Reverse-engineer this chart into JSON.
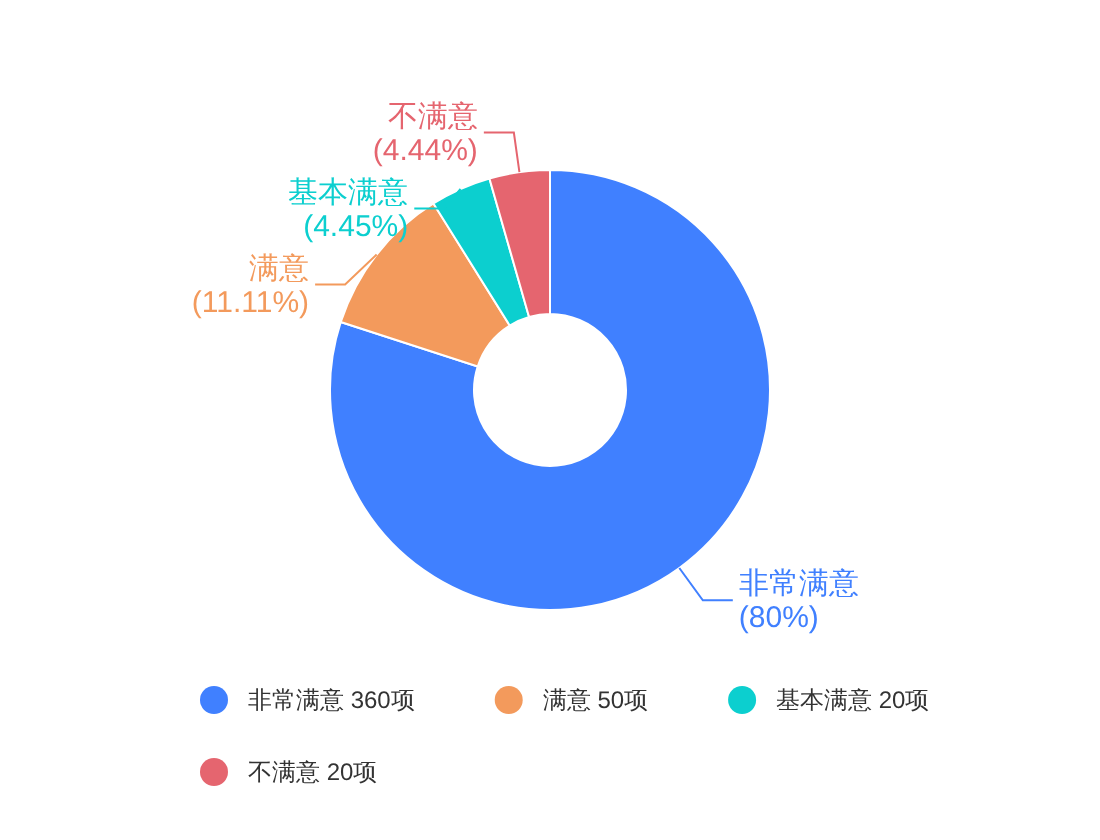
{
  "chart_data": {
    "type": "donut",
    "categories": [
      "非常满意 360项",
      "满意 50项",
      "基本满意 20项",
      "不满意 20项"
    ],
    "values": [
      80,
      11.11,
      4.45,
      4.44
    ],
    "colors": [
      "#4080ff",
      "#f39a5c",
      "#0ccfcf",
      "#e5656f"
    ],
    "value_labels": [
      "非常满意\n(80%)",
      "满意\n(11.11%)",
      "基本满意\n(4.45%)",
      "不满意\n(4.44%)"
    ],
    "legend": "bottom"
  }
}
